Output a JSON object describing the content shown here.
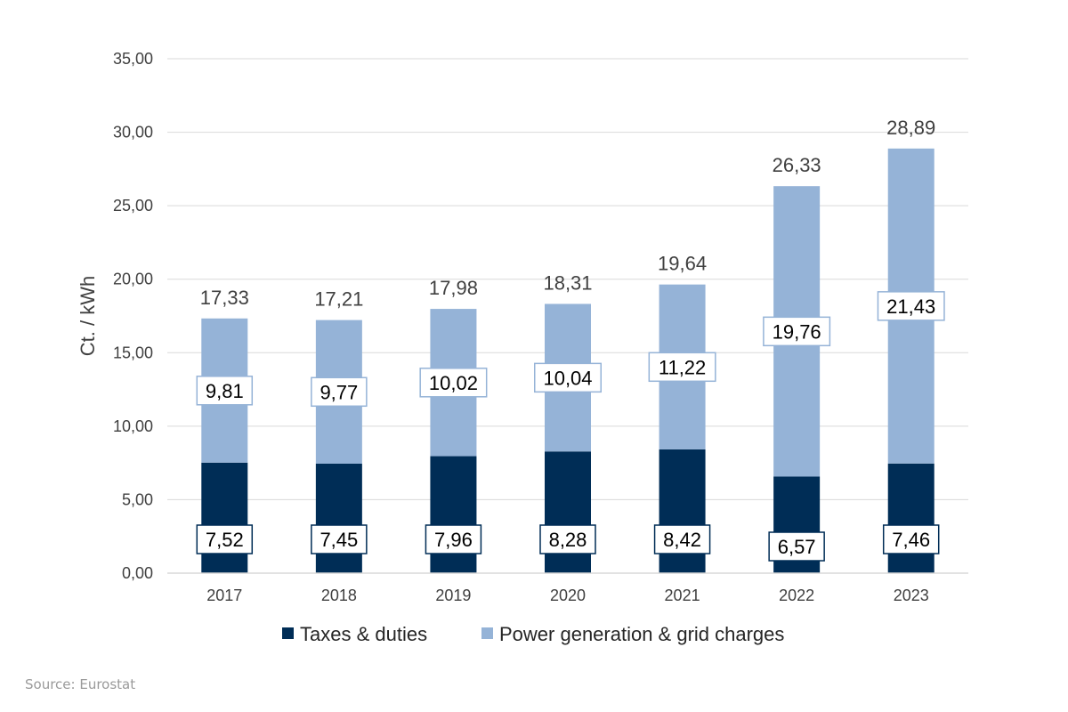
{
  "chart_data": {
    "type": "bar",
    "stacked": true,
    "categories": [
      "2017",
      "2018",
      "2019",
      "2020",
      "2021",
      "2022",
      "2023"
    ],
    "series": [
      {
        "name": "Taxes & duties",
        "color": "#002D56",
        "values": [
          7.52,
          7.45,
          7.96,
          8.28,
          8.42,
          6.57,
          7.46
        ],
        "labels": [
          "7,52",
          "7,45",
          "7,96",
          "8,28",
          "8,42",
          "6,57",
          "7,46"
        ]
      },
      {
        "name": "Power generation & grid charges",
        "color": "#95B3D7",
        "values": [
          9.81,
          9.77,
          10.02,
          10.04,
          11.22,
          19.76,
          21.43
        ],
        "labels": [
          "9,81",
          "9,77",
          "10,02",
          "10,04",
          "11,22",
          "19,76",
          "21,43"
        ]
      }
    ],
    "totals": [
      17.33,
      17.21,
      17.98,
      18.31,
      19.64,
      26.33,
      28.89
    ],
    "total_labels": [
      "17,33",
      "17,21",
      "17,98",
      "18,31",
      "19,64",
      "26,33",
      "28,89"
    ],
    "ylabel": "Ct. / kWh",
    "xlabel": "",
    "ylim": [
      0,
      35
    ],
    "yticks": [
      "0,00",
      "5,00",
      "10,00",
      "15,00",
      "20,00",
      "25,00",
      "30,00",
      "35,00"
    ],
    "grid": true,
    "legend_position": "bottom"
  },
  "source": "Source: Eurostat"
}
